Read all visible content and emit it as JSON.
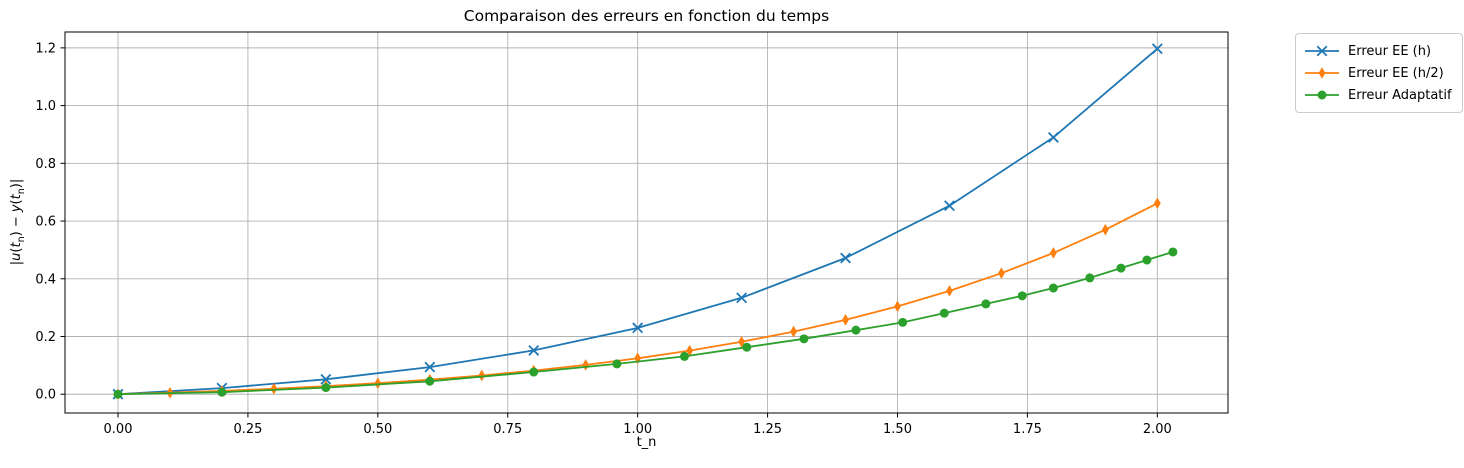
{
  "chart_data": {
    "type": "line",
    "title": "Comparaison des erreurs en fonction du temps",
    "xlabel": "t_n",
    "ylabel": "|u(t_n) − y(t_n)|",
    "grid": true,
    "grid_color": "#b2b2b2",
    "spine_color": "#000000",
    "background": "#ffffff",
    "legend_position": "outside-right",
    "xlim": [
      -0.102,
      2.136
    ],
    "ylim": [
      -0.065,
      1.255
    ],
    "x_ticks": {
      "values": [
        0.0,
        0.25,
        0.5,
        0.75,
        1.0,
        1.25,
        1.5,
        1.75,
        2.0
      ],
      "labels": [
        "0.00",
        "0.25",
        "0.50",
        "0.75",
        "1.00",
        "1.25",
        "1.50",
        "1.75",
        "2.00"
      ]
    },
    "y_ticks": {
      "values": [
        0.0,
        0.2,
        0.4,
        0.6,
        0.8,
        1.0,
        1.2
      ],
      "labels": [
        "0.0",
        "0.2",
        "0.4",
        "0.6",
        "0.8",
        "1.0",
        "1.2"
      ]
    },
    "series": [
      {
        "name": "Erreur EE (h)",
        "color": "#1f77b4",
        "marker": "x",
        "x": [
          0.0,
          0.2,
          0.4,
          0.6,
          0.8,
          1.0,
          1.2,
          1.4,
          1.6,
          1.8,
          2.0
        ],
        "y": [
          0.0,
          0.0214,
          0.0518,
          0.0941,
          0.1519,
          0.23,
          0.3341,
          0.472,
          0.6532,
          0.8899,
          1.1973
        ]
      },
      {
        "name": "Erreur EE (h/2)",
        "color": "#ff7f0e",
        "marker": "thin-diamond",
        "x": [
          0.0,
          0.1,
          0.2,
          0.3,
          0.4,
          0.5,
          0.6,
          0.7,
          0.8,
          0.9,
          1.0,
          1.1,
          1.2,
          1.3,
          1.4,
          1.5,
          1.6,
          1.7,
          1.8,
          1.9,
          2.0
        ],
        "y": [
          0.0,
          0.0052,
          0.0114,
          0.0189,
          0.0277,
          0.0382,
          0.0506,
          0.065,
          0.082,
          0.1017,
          0.1245,
          0.1511,
          0.1817,
          0.217,
          0.2577,
          0.3044,
          0.3581,
          0.4195,
          0.4897,
          0.57,
          0.6616
        ]
      },
      {
        "name": "Erreur Adaptatif",
        "color": "#2ca02c",
        "marker": "circle",
        "x": [
          0.0,
          0.2,
          0.4,
          0.6,
          0.8,
          0.96,
          1.09,
          1.21,
          1.32,
          1.42,
          1.51,
          1.59,
          1.67,
          1.74,
          1.8,
          1.87,
          1.93,
          1.98,
          2.03
        ],
        "y": [
          0.0,
          0.007,
          0.023,
          0.045,
          0.077,
          0.105,
          0.131,
          0.163,
          0.192,
          0.222,
          0.249,
          0.281,
          0.313,
          0.341,
          0.368,
          0.403,
          0.437,
          0.465,
          0.493
        ]
      }
    ]
  }
}
